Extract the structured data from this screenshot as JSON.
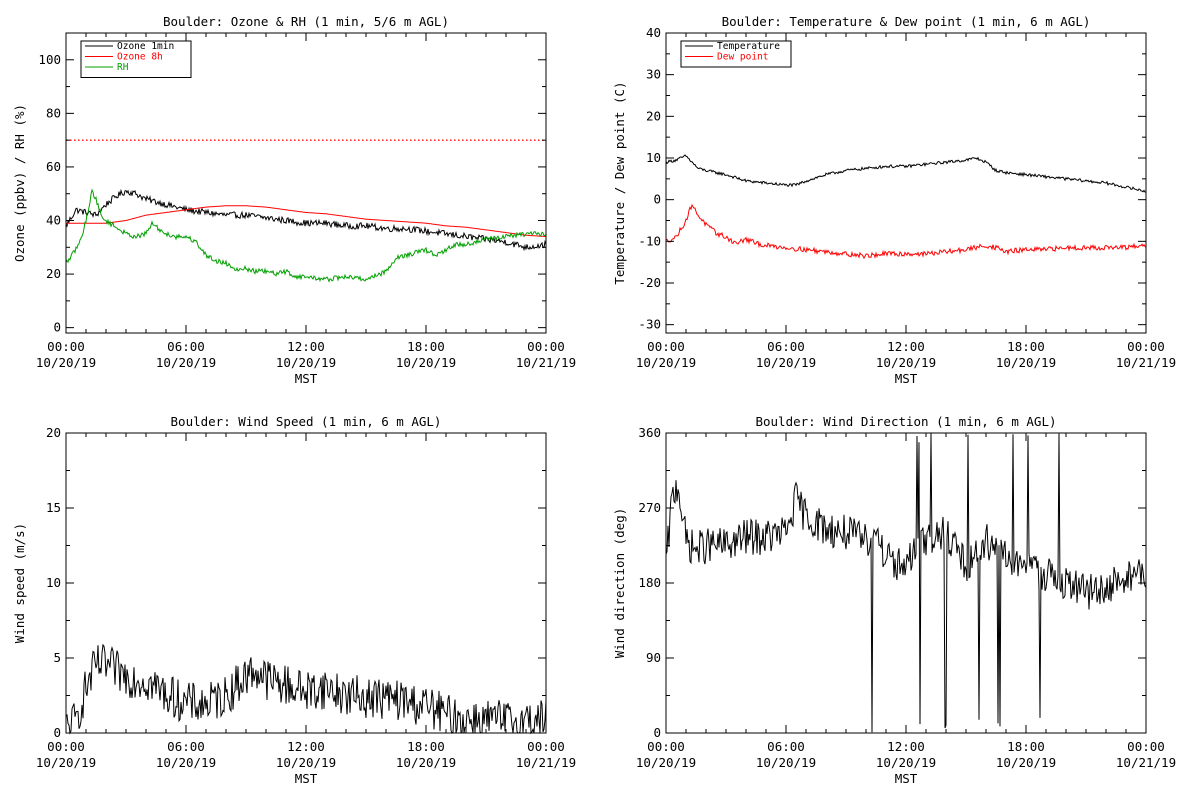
{
  "chart_data": [
    {
      "type": "line",
      "title": "Boulder: Ozone & RH (1 min, 5/6 m AGL)",
      "xlabel": "MST",
      "ylabel": "Ozone (ppbv) / RH (%)",
      "xlim_hours": [
        0,
        24
      ],
      "ylim": [
        -2,
        110
      ],
      "yticks": [
        0,
        20,
        40,
        60,
        80,
        100
      ],
      "xticks": [
        {
          "time": "00:00",
          "date": "10/20/19",
          "hour": 0
        },
        {
          "time": "06:00",
          "date": "10/20/19",
          "hour": 6
        },
        {
          "time": "12:00",
          "date": "10/20/19",
          "hour": 12
        },
        {
          "time": "18:00",
          "date": "10/20/19",
          "hour": 18
        },
        {
          "time": "00:00",
          "date": "10/21/19",
          "hour": 24
        }
      ],
      "legend_position": "top-left",
      "reference_lines": [
        {
          "y": 70,
          "color": "#ff0000",
          "style": "dotted"
        }
      ],
      "series": [
        {
          "name": "Ozone 1min",
          "color": "#000000",
          "noise": 1.2,
          "x": [
            0,
            0.5,
            1,
            1.5,
            2,
            2.5,
            3,
            3.5,
            4,
            5,
            6,
            7,
            8,
            9,
            10,
            11,
            12,
            13,
            14,
            15,
            16,
            17,
            18,
            19,
            20,
            21,
            22,
            23,
            24
          ],
          "y": [
            38,
            44,
            43,
            42,
            46,
            49,
            51,
            50,
            48,
            46,
            44,
            43,
            42,
            42,
            41,
            40,
            39,
            39,
            38,
            38,
            37,
            37,
            36,
            35,
            34,
            33,
            32,
            30,
            31
          ]
        },
        {
          "name": "Ozone 8h",
          "color": "#ff0000",
          "noise": 0,
          "x": [
            0,
            1,
            2,
            3,
            4,
            5,
            6,
            7,
            8,
            9,
            10,
            11,
            12,
            13,
            14,
            15,
            16,
            17,
            18,
            19,
            20,
            21,
            22,
            23,
            24
          ],
          "y": [
            39,
            39,
            39,
            40,
            42,
            43,
            44,
            45,
            45.5,
            45.5,
            45,
            44,
            43,
            42.5,
            41.5,
            40.5,
            40,
            39.5,
            39,
            38,
            37.5,
            36.5,
            35.5,
            34.5,
            34
          ]
        },
        {
          "name": "RH",
          "color": "#00a000",
          "noise": 0.9,
          "x": [
            0,
            0.3,
            0.7,
            1,
            1.3,
            1.5,
            1.8,
            2.2,
            2.6,
            3,
            3.5,
            4,
            4.3,
            4.6,
            5,
            5.5,
            6,
            6.5,
            7,
            7.5,
            8,
            8.5,
            9,
            9.5,
            10,
            10.5,
            11,
            11.5,
            12,
            13,
            14,
            15,
            16,
            16.5,
            17,
            17.5,
            18,
            18.5,
            19,
            19.5,
            20,
            21,
            22,
            23,
            24
          ],
          "y": [
            24,
            27,
            32,
            40,
            51,
            48,
            41,
            39,
            37,
            35,
            34,
            35,
            39,
            37,
            35,
            34,
            34,
            32,
            27,
            25,
            24,
            22,
            22,
            21,
            21,
            20,
            21,
            19,
            19,
            18,
            19,
            18,
            21,
            26,
            27,
            28,
            29,
            27,
            29,
            31,
            31,
            33,
            34,
            35,
            35
          ]
        }
      ]
    },
    {
      "type": "line",
      "title": "Boulder: Temperature & Dew point (1 min, 6 m AGL)",
      "xlabel": "MST",
      "ylabel": "Temperature / Dew point (C)",
      "xlim_hours": [
        0,
        24
      ],
      "ylim": [
        -32,
        40
      ],
      "yticks": [
        -30,
        -20,
        -10,
        0,
        10,
        20,
        30,
        40
      ],
      "xticks": [
        {
          "time": "00:00",
          "date": "10/20/19",
          "hour": 0
        },
        {
          "time": "06:00",
          "date": "10/20/19",
          "hour": 6
        },
        {
          "time": "12:00",
          "date": "10/20/19",
          "hour": 12
        },
        {
          "time": "18:00",
          "date": "10/20/19",
          "hour": 18
        },
        {
          "time": "00:00",
          "date": "10/21/19",
          "hour": 24
        }
      ],
      "legend_position": "top-left",
      "series": [
        {
          "name": "Temperature",
          "color": "#000000",
          "noise": 0.35,
          "x": [
            0,
            0.5,
            1,
            1.3,
            1.6,
            2,
            3,
            4,
            5,
            6,
            6.5,
            7,
            8,
            9,
            10,
            11,
            12,
            13,
            14,
            15,
            15.5,
            16,
            16.5,
            17,
            18,
            19,
            20,
            21,
            22,
            23,
            24
          ],
          "y": [
            9,
            9.5,
            10.5,
            9,
            7.5,
            7,
            6,
            4.5,
            4,
            3.5,
            3.5,
            4.5,
            6,
            7,
            7.5,
            8,
            8,
            8.5,
            9,
            9.5,
            10,
            9,
            7,
            6.5,
            6,
            5.5,
            5,
            4.5,
            4,
            3,
            2
          ]
        },
        {
          "name": "Dew point",
          "color": "#ff0000",
          "noise": 0.6,
          "x": [
            0,
            0.5,
            1,
            1.3,
            1.5,
            2,
            2.5,
            3,
            3.5,
            4,
            4.5,
            5,
            6,
            7,
            8,
            9,
            10,
            11,
            12,
            13,
            14,
            15,
            16,
            16.5,
            17,
            18,
            19,
            20,
            21,
            22,
            23,
            24
          ],
          "y": [
            -10,
            -9,
            -5,
            -1,
            -3,
            -6,
            -8,
            -9,
            -10.5,
            -9.5,
            -10.5,
            -11,
            -11.5,
            -12,
            -12.5,
            -13,
            -13.5,
            -13,
            -13,
            -13,
            -12.5,
            -12,
            -11,
            -11.5,
            -12.5,
            -12,
            -12,
            -11.5,
            -11.5,
            -11.5,
            -11.5,
            -11
          ]
        }
      ]
    },
    {
      "type": "line",
      "title": "Boulder: Wind Speed (1 min, 6 m AGL)",
      "xlabel": "MST",
      "ylabel": "Wind speed (m/s)",
      "xlim_hours": [
        0,
        24
      ],
      "ylim": [
        0,
        20
      ],
      "yticks": [
        0,
        5,
        10,
        15,
        20
      ],
      "xticks": [
        {
          "time": "00:00",
          "date": "10/20/19",
          "hour": 0
        },
        {
          "time": "06:00",
          "date": "10/20/19",
          "hour": 6
        },
        {
          "time": "12:00",
          "date": "10/20/19",
          "hour": 12
        },
        {
          "time": "18:00",
          "date": "10/20/19",
          "hour": 18
        },
        {
          "time": "00:00",
          "date": "10/21/19",
          "hour": 24
        }
      ],
      "series": [
        {
          "name": "",
          "color": "#000000",
          "noise": 1.4,
          "floor": 0,
          "x": [
            0,
            0.5,
            1,
            1.5,
            2,
            3,
            4,
            5,
            6,
            7,
            8,
            9,
            9.5,
            10,
            11,
            12,
            13,
            14,
            15,
            16,
            17,
            18,
            19,
            20,
            21,
            22,
            23,
            24
          ],
          "y": [
            0.3,
            0.8,
            3,
            4.5,
            4.5,
            3.8,
            3.5,
            2.6,
            2,
            1.9,
            2.5,
            3.8,
            4.2,
            3.6,
            3.2,
            2.8,
            3,
            2.5,
            2.4,
            2.3,
            2.1,
            1.8,
            1.2,
            0.9,
            0.9,
            0.8,
            0.8,
            1
          ]
        }
      ]
    },
    {
      "type": "line",
      "title": "Boulder: Wind Direction (1 min, 6 m AGL)",
      "xlabel": "MST",
      "ylabel": "Wind direction (deg)",
      "xlim_hours": [
        0,
        24
      ],
      "ylim": [
        0,
        360
      ],
      "yticks": [
        0,
        90,
        180,
        270,
        360
      ],
      "xticks": [
        {
          "time": "00:00",
          "date": "10/20/19",
          "hour": 0
        },
        {
          "time": "06:00",
          "date": "10/20/19",
          "hour": 6
        },
        {
          "time": "12:00",
          "date": "10/20/19",
          "hour": 12
        },
        {
          "time": "18:00",
          "date": "10/20/19",
          "hour": 18
        },
        {
          "time": "00:00",
          "date": "10/21/19",
          "hour": 24
        }
      ],
      "series": [
        {
          "name": "",
          "color": "#000000",
          "noise": 22,
          "floor": 0,
          "ceil": 360,
          "spikes": true,
          "x": [
            0,
            0.3,
            0.6,
            1,
            1.5,
            2,
            3,
            4,
            5,
            6,
            6.5,
            7,
            8,
            9,
            10,
            10.5,
            11,
            12,
            13,
            14,
            15,
            16,
            17,
            18,
            19,
            20,
            21,
            22,
            23,
            24
          ],
          "y": [
            200,
            280,
            300,
            230,
            220,
            225,
            225,
            235,
            235,
            240,
            280,
            260,
            245,
            240,
            230,
            240,
            210,
            200,
            230,
            240,
            200,
            230,
            210,
            200,
            190,
            180,
            170,
            170,
            190,
            190
          ]
        }
      ]
    }
  ]
}
